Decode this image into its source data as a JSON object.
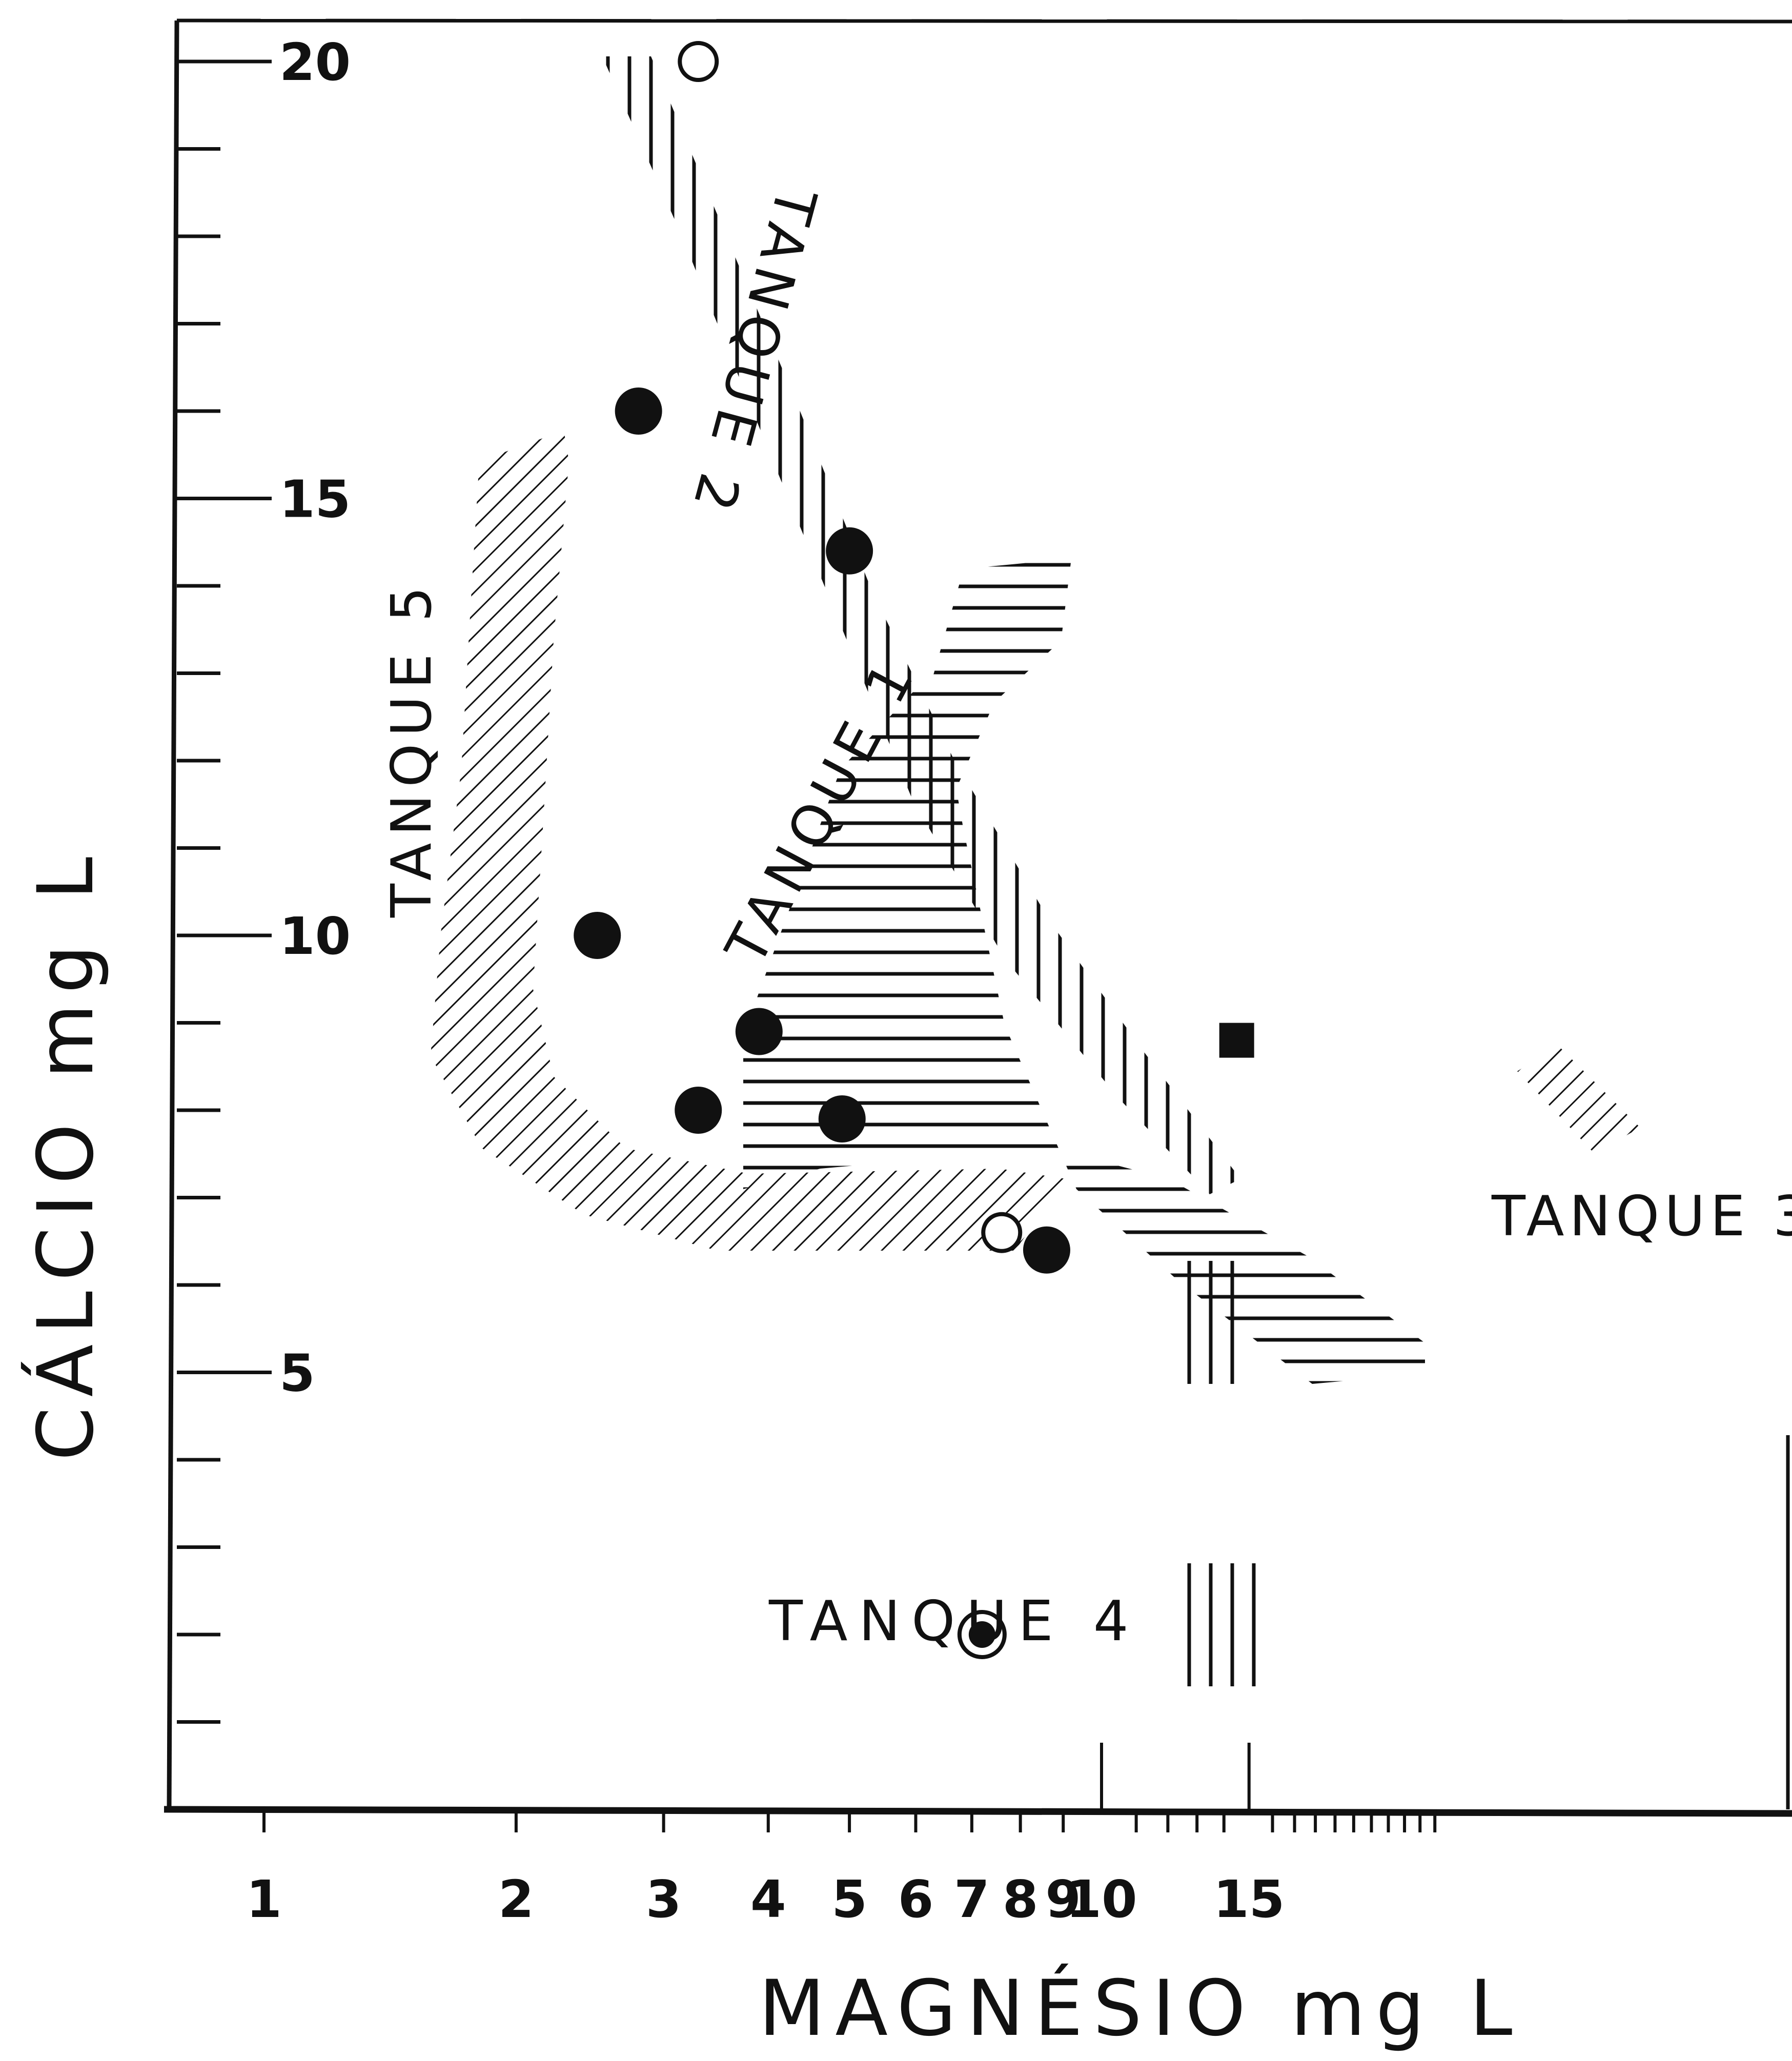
{
  "chart_data": {
    "type": "scatter",
    "title": "",
    "xlabel": "MAGNÉSIO mg L",
    "ylabel": "CÁLCIO mg L",
    "xscale": "log",
    "xlim": [
      0.6,
      25
    ],
    "ylim": [
      0,
      21
    ],
    "x_tick_labels": [
      "1",
      "2",
      "3",
      "4",
      "5",
      "6",
      "7",
      "8",
      "9",
      "10",
      "15"
    ],
    "y_tick_labels": [
      "5",
      "10",
      "15",
      "20"
    ],
    "grid": false,
    "legend": "none",
    "series": [
      {
        "name": "TANQUE 1",
        "style": "open-circle",
        "x": [
          7.6
        ],
        "y": [
          6.6
        ]
      },
      {
        "name": "TANQUE 2",
        "style": "open-circle",
        "x": [
          3.3
        ],
        "y": [
          20.0
        ]
      },
      {
        "name": "TANQUE 1 / TANQUE 2",
        "style": "filled-circle",
        "x": [
          3.9,
          4.9,
          5.0,
          8.6
        ],
        "y": [
          8.9,
          7.9,
          14.4,
          6.4
        ]
      },
      {
        "name": "TANQUE 3",
        "style": "filled-square",
        "x": [
          14.5
        ],
        "y": [
          8.8
        ]
      },
      {
        "name": "TANQUE 4",
        "style": "circled-dot",
        "x": [
          7.2
        ],
        "y": [
          2.0
        ]
      },
      {
        "name": "TANQUE 5",
        "style": "filled-circle",
        "x": [
          2.5,
          2.8,
          3.3
        ],
        "y": [
          10.0,
          16.0,
          8.0
        ]
      }
    ],
    "annotations": [
      "TANQUE 2",
      "TANQUE 5",
      "TANQUE 1",
      "TANQUE 3",
      "TANQUE 4"
    ]
  },
  "colors": {
    "ink": "#111111",
    "background": "#ffffff"
  }
}
